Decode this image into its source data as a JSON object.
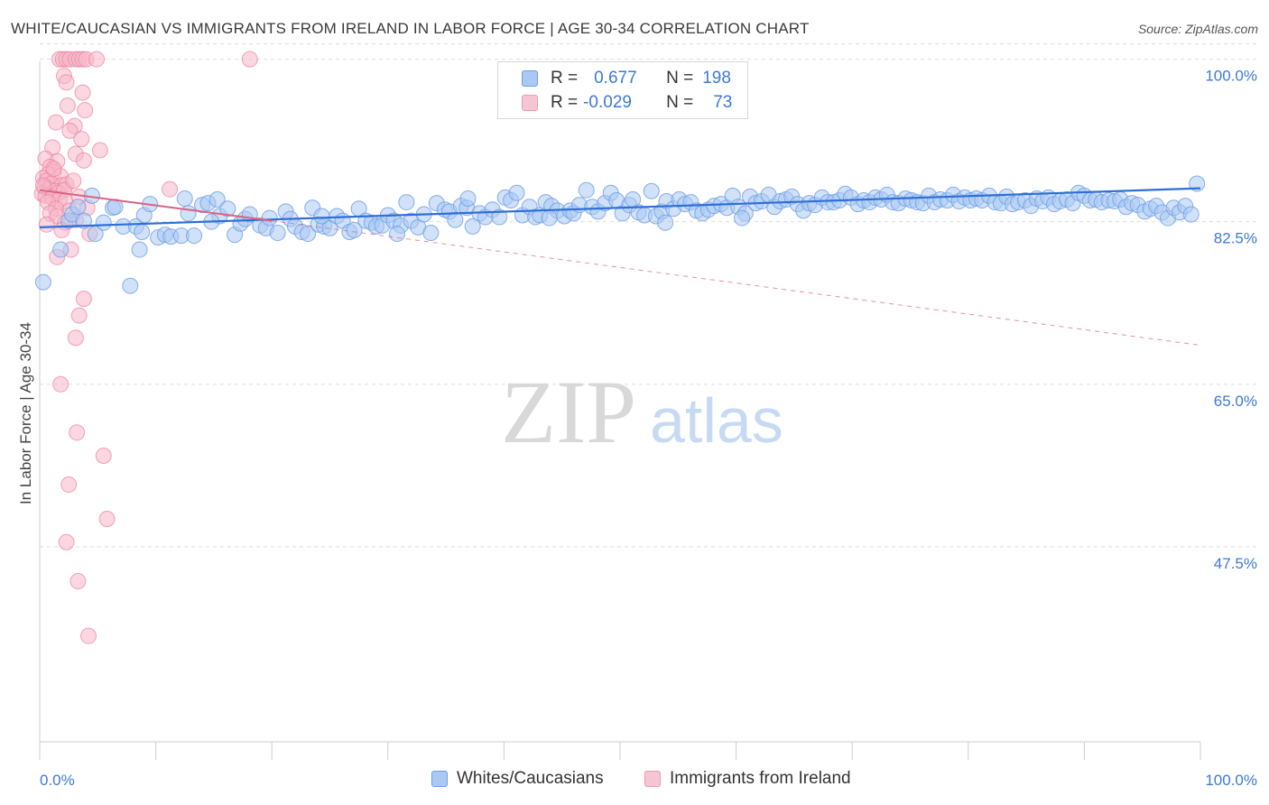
{
  "title": "WHITE/CAUCASIAN VS IMMIGRANTS FROM IRELAND IN LABOR FORCE | AGE 30-34 CORRELATION CHART",
  "source": "Source: ZipAtlas.com",
  "watermark": {
    "zip": "ZIP",
    "atlas": "atlas"
  },
  "legend": {
    "rows": [
      {
        "r_label": "R =",
        "r_value": "0.677",
        "n_label": "N =",
        "n_value": "198"
      },
      {
        "r_label": "R =",
        "r_value": "-0.029",
        "n_label": "N =",
        "n_value": "73"
      }
    ]
  },
  "bottom_legend": {
    "series1": "Whites/Caucasians",
    "series2": "Immigrants from Ireland"
  },
  "colors": {
    "blue_fill": "#a9c8f3",
    "blue_stroke": "#6b9ee6",
    "blue_line": "#2f6fd6",
    "pink_fill": "#f6b6c9",
    "pink_stroke": "#ec7fa0",
    "pink_line": "#e0607f",
    "tick_text": "#3d7ad6",
    "grid": "#dddddd"
  },
  "chart_data": {
    "type": "scatter",
    "title": "WHITE/CAUCASIAN VS IMMIGRANTS FROM IRELAND IN LABOR FORCE | AGE 30-34 CORRELATION CHART",
    "xlabel": "",
    "ylabel": "In Labor Force | Age 30-34",
    "xlim": [
      0,
      100
    ],
    "ylim": [
      26.5,
      102
    ],
    "x_tick_labels": [
      "0.0%",
      "100.0%"
    ],
    "y_ticks": [
      {
        "value": 47.5,
        "label": "47.5%"
      },
      {
        "value": 65.0,
        "label": "65.0%"
      },
      {
        "value": 82.5,
        "label": "82.5%"
      },
      {
        "value": 100.0,
        "label": "100.0%"
      }
    ],
    "series": [
      {
        "name": "Whites/Caucasians",
        "R": 0.677,
        "N": 198,
        "trend": {
          "x0": 0,
          "y0": 81.9,
          "x1": 100,
          "y1": 86.1
        },
        "points": [
          [
            0.3,
            76.0
          ],
          [
            1.8,
            79.5
          ],
          [
            2.5,
            82.6
          ],
          [
            2.8,
            83.3
          ],
          [
            3.3,
            84.1
          ],
          [
            3.8,
            82.6
          ],
          [
            4.5,
            85.3
          ],
          [
            4.8,
            81.2
          ],
          [
            5.5,
            82.4
          ],
          [
            6.3,
            84.0
          ],
          [
            6.5,
            84.1
          ],
          [
            7.2,
            82.0
          ],
          [
            7.8,
            75.6
          ],
          [
            8.3,
            82.0
          ],
          [
            8.8,
            81.4
          ],
          [
            9.0,
            83.2
          ],
          [
            9.5,
            84.4
          ],
          [
            10.2,
            80.8
          ],
          [
            10.8,
            81.1
          ],
          [
            11.3,
            80.9
          ],
          [
            12.2,
            81.0
          ],
          [
            12.5,
            85.0
          ],
          [
            12.8,
            83.4
          ],
          [
            13.3,
            81.0
          ],
          [
            14.0,
            84.3
          ],
          [
            14.5,
            84.5
          ],
          [
            15.3,
            84.9
          ],
          [
            15.5,
            83.1
          ],
          [
            16.2,
            83.9
          ],
          [
            16.8,
            81.1
          ],
          [
            17.3,
            82.3
          ],
          [
            17.7,
            82.8
          ],
          [
            18.1,
            83.3
          ],
          [
            19.0,
            82.1
          ],
          [
            19.5,
            81.8
          ],
          [
            19.8,
            82.9
          ],
          [
            20.5,
            81.3
          ],
          [
            21.2,
            83.6
          ],
          [
            21.6,
            82.8
          ],
          [
            22.0,
            82.0
          ],
          [
            22.6,
            81.4
          ],
          [
            23.1,
            81.2
          ],
          [
            23.5,
            84.0
          ],
          [
            24.0,
            82.2
          ],
          [
            24.5,
            82.0
          ],
          [
            25.0,
            81.8
          ],
          [
            25.6,
            83.1
          ],
          [
            26.1,
            82.6
          ],
          [
            26.7,
            81.4
          ],
          [
            27.1,
            81.6
          ],
          [
            27.5,
            83.9
          ],
          [
            28.1,
            82.6
          ],
          [
            28.6,
            82.4
          ],
          [
            29.0,
            82.0
          ],
          [
            29.5,
            82.1
          ],
          [
            30.0,
            83.2
          ],
          [
            30.5,
            82.6
          ],
          [
            31.1,
            82.1
          ],
          [
            31.6,
            84.6
          ],
          [
            32.0,
            82.6
          ],
          [
            32.6,
            81.9
          ],
          [
            33.1,
            83.3
          ],
          [
            33.7,
            81.3
          ],
          [
            34.2,
            84.5
          ],
          [
            34.9,
            83.8
          ],
          [
            35.3,
            83.6
          ],
          [
            35.8,
            82.7
          ],
          [
            36.3,
            84.2
          ],
          [
            36.8,
            84.0
          ],
          [
            37.3,
            82.0
          ],
          [
            37.9,
            83.4
          ],
          [
            38.4,
            83.0
          ],
          [
            39.0,
            83.8
          ],
          [
            39.6,
            83.0
          ],
          [
            40.1,
            85.1
          ],
          [
            40.6,
            84.8
          ],
          [
            41.1,
            85.6
          ],
          [
            41.6,
            83.2
          ],
          [
            42.2,
            84.1
          ],
          [
            42.7,
            83.0
          ],
          [
            43.1,
            83.2
          ],
          [
            43.6,
            84.6
          ],
          [
            44.1,
            84.2
          ],
          [
            44.6,
            83.7
          ],
          [
            45.2,
            83.1
          ],
          [
            45.7,
            83.7
          ],
          [
            46.0,
            83.4
          ],
          [
            46.5,
            84.3
          ],
          [
            47.1,
            85.9
          ],
          [
            47.6,
            84.1
          ],
          [
            48.1,
            83.6
          ],
          [
            48.7,
            84.5
          ],
          [
            49.2,
            85.6
          ],
          [
            49.7,
            84.8
          ],
          [
            50.2,
            83.4
          ],
          [
            50.8,
            84.3
          ],
          [
            51.1,
            84.9
          ],
          [
            51.6,
            83.5
          ],
          [
            52.1,
            83.2
          ],
          [
            52.7,
            85.8
          ],
          [
            53.1,
            83.1
          ],
          [
            53.6,
            83.6
          ],
          [
            54.0,
            84.7
          ],
          [
            54.6,
            83.9
          ],
          [
            55.1,
            84.9
          ],
          [
            55.6,
            84.4
          ],
          [
            56.1,
            84.6
          ],
          [
            56.6,
            83.7
          ],
          [
            57.1,
            83.4
          ],
          [
            57.6,
            83.8
          ],
          [
            58.1,
            84.2
          ],
          [
            58.7,
            84.4
          ],
          [
            59.2,
            84.0
          ],
          [
            59.7,
            85.3
          ],
          [
            60.2,
            84.1
          ],
          [
            60.8,
            83.4
          ],
          [
            61.2,
            85.2
          ],
          [
            61.7,
            84.5
          ],
          [
            62.2,
            84.7
          ],
          [
            62.8,
            85.4
          ],
          [
            63.3,
            84.1
          ],
          [
            63.8,
            84.7
          ],
          [
            64.3,
            84.9
          ],
          [
            64.8,
            85.2
          ],
          [
            65.3,
            84.4
          ],
          [
            65.8,
            83.7
          ],
          [
            66.3,
            84.5
          ],
          [
            66.8,
            84.3
          ],
          [
            67.4,
            85.1
          ],
          [
            67.9,
            84.6
          ],
          [
            68.4,
            84.6
          ],
          [
            68.9,
            84.8
          ],
          [
            69.4,
            85.5
          ],
          [
            69.9,
            85.1
          ],
          [
            70.5,
            84.4
          ],
          [
            71.0,
            84.8
          ],
          [
            71.5,
            84.6
          ],
          [
            72.0,
            85.1
          ],
          [
            72.5,
            84.9
          ],
          [
            73.0,
            85.4
          ],
          [
            73.5,
            84.6
          ],
          [
            74.0,
            84.5
          ],
          [
            74.6,
            85.0
          ],
          [
            75.1,
            84.8
          ],
          [
            75.6,
            84.6
          ],
          [
            76.1,
            84.5
          ],
          [
            76.6,
            85.3
          ],
          [
            77.1,
            84.6
          ],
          [
            77.6,
            84.9
          ],
          [
            78.2,
            84.8
          ],
          [
            78.7,
            85.4
          ],
          [
            79.2,
            84.7
          ],
          [
            79.7,
            85.1
          ],
          [
            80.2,
            84.8
          ],
          [
            80.7,
            85.0
          ],
          [
            81.2,
            84.8
          ],
          [
            81.8,
            85.3
          ],
          [
            82.3,
            84.6
          ],
          [
            82.8,
            84.5
          ],
          [
            83.3,
            85.2
          ],
          [
            83.8,
            84.4
          ],
          [
            84.3,
            84.6
          ],
          [
            84.9,
            84.8
          ],
          [
            85.4,
            84.2
          ],
          [
            85.9,
            85.0
          ],
          [
            86.4,
            84.7
          ],
          [
            86.9,
            85.1
          ],
          [
            87.4,
            84.4
          ],
          [
            87.9,
            84.7
          ],
          [
            88.5,
            84.9
          ],
          [
            89.0,
            84.5
          ],
          [
            89.5,
            85.6
          ],
          [
            90.0,
            85.3
          ],
          [
            90.5,
            84.8
          ],
          [
            91.0,
            84.9
          ],
          [
            91.5,
            84.6
          ],
          [
            92.1,
            84.8
          ],
          [
            92.6,
            84.7
          ],
          [
            93.1,
            84.9
          ],
          [
            93.6,
            84.1
          ],
          [
            94.1,
            84.5
          ],
          [
            94.6,
            84.3
          ],
          [
            95.2,
            83.6
          ],
          [
            95.7,
            83.9
          ],
          [
            96.2,
            84.2
          ],
          [
            96.7,
            83.5
          ],
          [
            97.2,
            82.9
          ],
          [
            97.7,
            84.0
          ],
          [
            98.2,
            83.5
          ],
          [
            98.7,
            84.2
          ],
          [
            99.2,
            83.3
          ],
          [
            99.7,
            86.6
          ],
          [
            8.6,
            79.5
          ],
          [
            14.8,
            82.5
          ],
          [
            24.3,
            83.1
          ],
          [
            30.8,
            81.2
          ],
          [
            36.9,
            85.0
          ],
          [
            43.9,
            82.9
          ],
          [
            53.9,
            82.4
          ],
          [
            60.5,
            82.9
          ]
        ]
      },
      {
        "name": "Immigrants from Ireland",
        "R": -0.029,
        "N": 73,
        "trend": {
          "x0": 0,
          "y0": 85.9,
          "x1": 20,
          "y1": 82.6
        },
        "trend_dashed": {
          "x0": 20,
          "y0": 82.6,
          "x1": 100,
          "y1": 69.2
        },
        "points": [
          [
            1.7,
            100.0
          ],
          [
            2.0,
            100.0
          ],
          [
            2.3,
            100.0
          ],
          [
            2.6,
            100.0
          ],
          [
            3.1,
            100.0
          ],
          [
            3.4,
            100.0
          ],
          [
            3.7,
            100.0
          ],
          [
            4.0,
            100.0
          ],
          [
            4.9,
            100.0
          ],
          [
            18.1,
            100.0
          ],
          [
            2.1,
            98.2
          ],
          [
            2.3,
            97.5
          ],
          [
            3.7,
            96.4
          ],
          [
            2.4,
            95.0
          ],
          [
            3.9,
            94.5
          ],
          [
            1.4,
            93.2
          ],
          [
            3.0,
            92.8
          ],
          [
            2.6,
            92.3
          ],
          [
            3.6,
            91.4
          ],
          [
            1.1,
            90.5
          ],
          [
            5.2,
            90.2
          ],
          [
            3.1,
            89.8
          ],
          [
            0.5,
            89.3
          ],
          [
            1.5,
            89.0
          ],
          [
            3.8,
            89.1
          ],
          [
            0.9,
            88.4
          ],
          [
            1.2,
            87.9
          ],
          [
            0.7,
            87.6
          ],
          [
            1.8,
            87.4
          ],
          [
            0.3,
            87.2
          ],
          [
            0.6,
            86.9
          ],
          [
            1.0,
            86.6
          ],
          [
            1.9,
            86.4
          ],
          [
            2.3,
            86.5
          ],
          [
            0.4,
            86.2
          ],
          [
            0.8,
            86.0
          ],
          [
            1.3,
            85.8
          ],
          [
            1.6,
            85.6
          ],
          [
            2.1,
            85.9
          ],
          [
            0.2,
            85.5
          ],
          [
            0.5,
            85.3
          ],
          [
            1.1,
            85.1
          ],
          [
            1.7,
            84.9
          ],
          [
            2.2,
            84.7
          ],
          [
            0.7,
            84.6
          ],
          [
            11.2,
            86.0
          ],
          [
            3.4,
            85.2
          ],
          [
            4.1,
            84.0
          ],
          [
            1.4,
            83.9
          ],
          [
            2.6,
            83.7
          ],
          [
            0.9,
            83.4
          ],
          [
            1.5,
            83.1
          ],
          [
            3.1,
            82.7
          ],
          [
            2.2,
            82.4
          ],
          [
            0.6,
            82.2
          ],
          [
            1.9,
            81.6
          ],
          [
            4.3,
            81.2
          ],
          [
            2.7,
            79.5
          ],
          [
            1.5,
            78.7
          ],
          [
            3.8,
            74.2
          ],
          [
            3.4,
            72.4
          ],
          [
            3.1,
            70.0
          ],
          [
            1.8,
            65.0
          ],
          [
            3.2,
            59.8
          ],
          [
            5.5,
            57.3
          ],
          [
            2.5,
            54.2
          ],
          [
            5.8,
            50.5
          ],
          [
            2.3,
            48.0
          ],
          [
            3.3,
            43.8
          ],
          [
            4.2,
            37.9
          ],
          [
            0.3,
            86.4
          ],
          [
            2.9,
            86.9
          ],
          [
            1.2,
            88.2
          ]
        ]
      }
    ]
  }
}
